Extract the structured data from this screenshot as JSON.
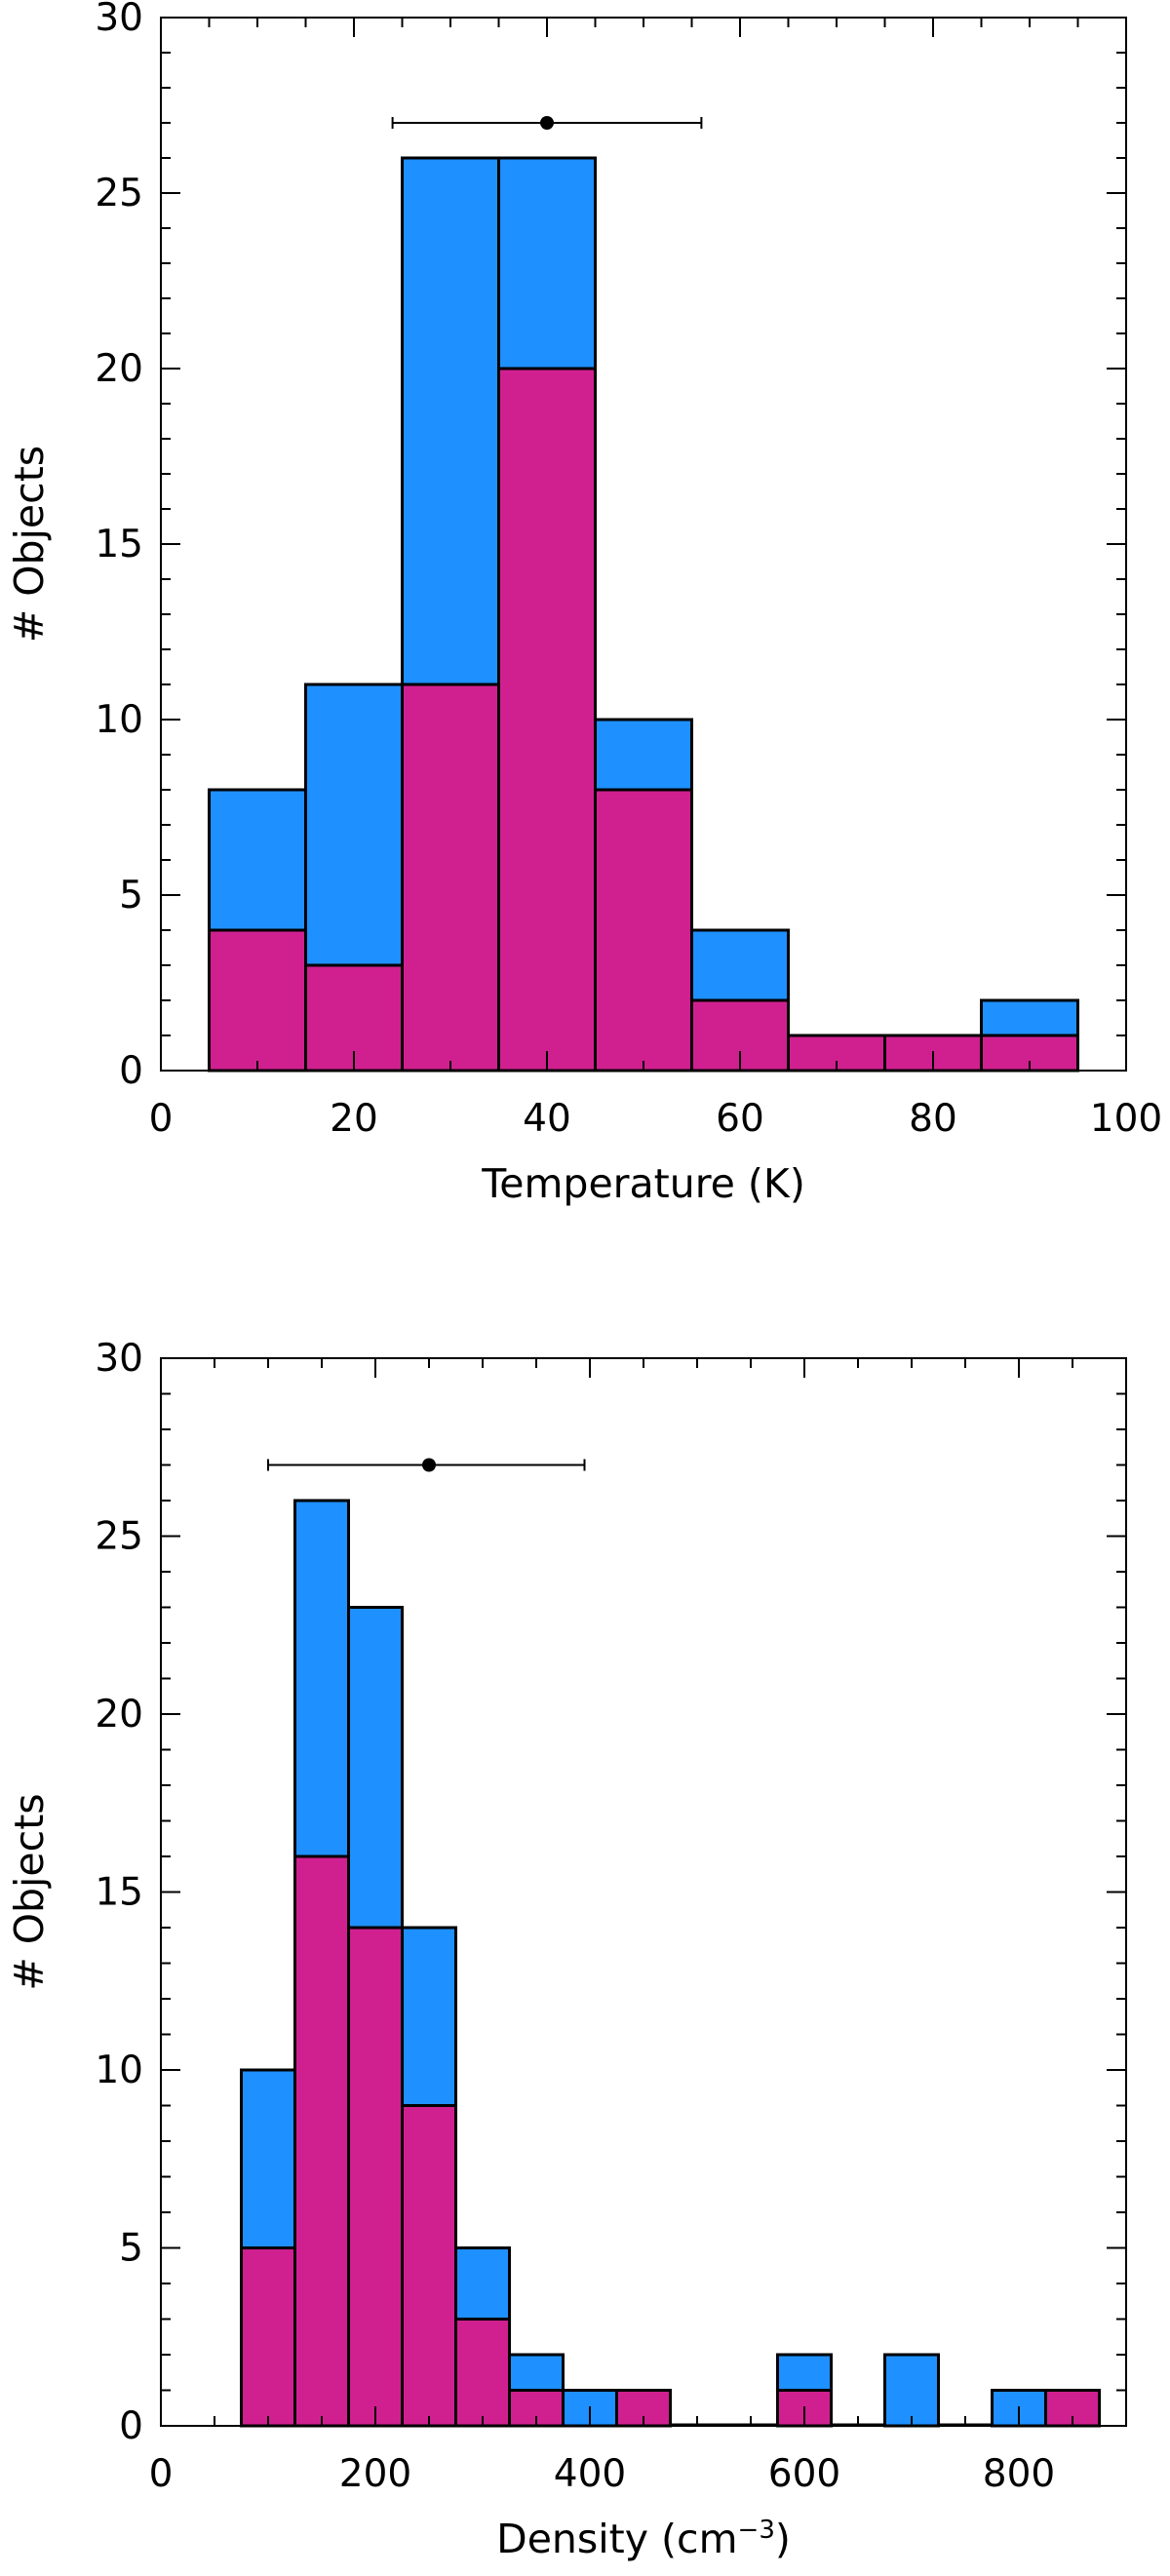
{
  "chart_data": [
    {
      "type": "bar",
      "stacked": false,
      "overlaid": true,
      "xlabel": "Temperature (K)",
      "ylabel": "# Objects",
      "xlim": [
        0,
        100
      ],
      "ylim": [
        0,
        30
      ],
      "xticks": [
        0,
        20,
        40,
        60,
        80,
        100
      ],
      "yticks": [
        0,
        5,
        10,
        15,
        20,
        25,
        30
      ],
      "bin_width": 10,
      "bin_centers": [
        10,
        20,
        30,
        40,
        50,
        60,
        70,
        80,
        90
      ],
      "series": [
        {
          "values": [
            8,
            11,
            26,
            26,
            10,
            4,
            1,
            1,
            2
          ],
          "color": "#1E90FF"
        },
        {
          "values": [
            4,
            3,
            11,
            20,
            8,
            2,
            1,
            1,
            1
          ],
          "color": "#D02090"
        }
      ],
      "errorbar": {
        "x": 40,
        "y": 27,
        "xmin": 24,
        "xmax": 56
      },
      "grid": false
    },
    {
      "type": "bar",
      "stacked": false,
      "overlaid": true,
      "xlabel": "Density (cm",
      "xlabel_sup": "−3",
      "xlabel_end": ")",
      "ylabel": "# Objects",
      "xlim": [
        0,
        900
      ],
      "ylim": [
        0,
        30
      ],
      "xticks": [
        0,
        200,
        400,
        600,
        800
      ],
      "yticks": [
        0,
        5,
        10,
        15,
        20,
        25,
        30
      ],
      "bin_width": 50,
      "bin_centers": [
        100,
        150,
        200,
        250,
        300,
        350,
        400,
        450,
        500,
        550,
        600,
        650,
        700,
        750,
        800,
        850
      ],
      "series": [
        {
          "values": [
            10,
            26,
            23,
            14,
            5,
            2,
            1,
            1,
            0,
            0,
            2,
            0,
            2,
            0,
            1,
            1
          ],
          "color": "#1E90FF"
        },
        {
          "values": [
            5,
            16,
            14,
            9,
            3,
            1,
            0,
            1,
            0,
            0,
            1,
            0,
            0,
            0,
            0,
            1
          ],
          "color": "#D02090"
        }
      ],
      "errorbar": {
        "x": 250,
        "y": 27,
        "xmin": 100,
        "xmax": 395
      },
      "grid": false
    }
  ]
}
